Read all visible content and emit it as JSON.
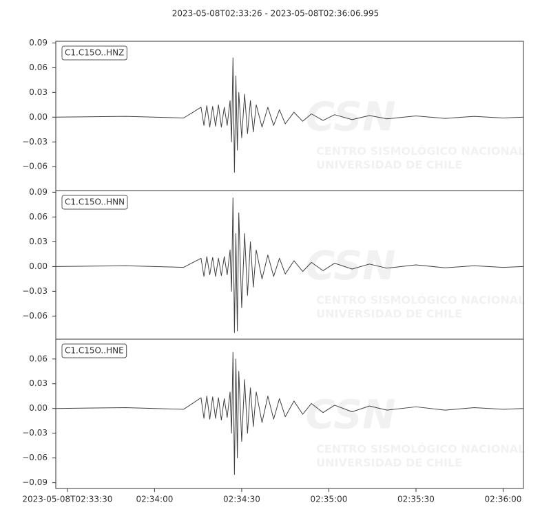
{
  "watermark": {
    "logo": "CSN",
    "lines": [
      "CENTRO SISMOLÓGICO NACIONAL",
      "UNIVERSIDAD DE CHILE"
    ]
  },
  "chart_data": [
    {
      "type": "line",
      "title": "2023-05-08T02:33:26  -  2023-05-08T02:36:06.995",
      "x": [
        "2023-05-08T02:33:26",
        "2023-05-08T02:33:50",
        "2023-05-08T02:34:10",
        "2023-05-08T02:34:16",
        "2023-05-08T02:34:17",
        "2023-05-08T02:34:18",
        "2023-05-08T02:34:19",
        "2023-05-08T02:34:20",
        "2023-05-08T02:34:21",
        "2023-05-08T02:34:22",
        "2023-05-08T02:34:23",
        "2023-05-08T02:34:24",
        "2023-05-08T02:34:25",
        "2023-05-08T02:34:26",
        "2023-05-08T02:34:26.5",
        "2023-05-08T02:34:27",
        "2023-05-08T02:34:27.5",
        "2023-05-08T02:34:28",
        "2023-05-08T02:34:28.5",
        "2023-05-08T02:34:29",
        "2023-05-08T02:34:30",
        "2023-05-08T02:34:31",
        "2023-05-08T02:34:32",
        "2023-05-08T02:34:33",
        "2023-05-08T02:34:34",
        "2023-05-08T02:34:35",
        "2023-05-08T02:34:37",
        "2023-05-08T02:34:39",
        "2023-05-08T02:34:41",
        "2023-05-08T02:34:43",
        "2023-05-08T02:34:45",
        "2023-05-08T02:34:48",
        "2023-05-08T02:34:51",
        "2023-05-08T02:34:54",
        "2023-05-08T02:34:58",
        "2023-05-08T02:35:02",
        "2023-05-08T02:35:08",
        "2023-05-08T02:35:14",
        "2023-05-08T02:35:20",
        "2023-05-08T02:35:30",
        "2023-05-08T02:35:40",
        "2023-05-08T02:35:50",
        "2023-05-08T02:36:00",
        "2023-05-08T02:36:06.995"
      ],
      "series": [
        {
          "name": "C1.C15O..HNZ",
          "color": "#404040",
          "values": [
            0,
            0.001,
            -0.001,
            0.012,
            -0.01,
            0.014,
            -0.012,
            0.013,
            -0.011,
            0.015,
            -0.012,
            0.012,
            -0.01,
            0.02,
            -0.03,
            0.072,
            -0.067,
            0.05,
            -0.04,
            0.03,
            -0.025,
            0.028,
            -0.02,
            0.02,
            -0.018,
            0.015,
            -0.012,
            0.012,
            -0.01,
            0.009,
            -0.008,
            0.006,
            -0.005,
            0.004,
            -0.004,
            0.003,
            -0.003,
            0.002,
            -0.002,
            0.0015,
            -0.0015,
            0.001,
            -0.001,
            0
          ]
        }
      ],
      "xlim": [
        "2023-05-08T02:33:26",
        "2023-05-08T02:36:06.995"
      ],
      "ylim": [
        -0.089,
        0.092
      ],
      "yticks": [
        0.09,
        0.06,
        0.03,
        {
          "value": 0,
          "label": "0.00"
        },
        {
          "value": -0.03,
          "label": "−0.03"
        },
        {
          "value": -0.06,
          "label": "−0.06"
        }
      ],
      "legend": "upper left"
    },
    {
      "type": "line",
      "x": [
        "2023-05-08T02:33:26",
        "2023-05-08T02:33:50",
        "2023-05-08T02:34:10",
        "2023-05-08T02:34:16",
        "2023-05-08T02:34:17",
        "2023-05-08T02:34:18",
        "2023-05-08T02:34:19",
        "2023-05-08T02:34:20",
        "2023-05-08T02:34:21",
        "2023-05-08T02:34:22",
        "2023-05-08T02:34:23",
        "2023-05-08T02:34:24",
        "2023-05-08T02:34:25",
        "2023-05-08T02:34:26",
        "2023-05-08T02:34:26.5",
        "2023-05-08T02:34:27",
        "2023-05-08T02:34:27.5",
        "2023-05-08T02:34:28",
        "2023-05-08T02:34:28.5",
        "2023-05-08T02:34:29",
        "2023-05-08T02:34:30",
        "2023-05-08T02:34:31",
        "2023-05-08T02:34:32",
        "2023-05-08T02:34:33",
        "2023-05-08T02:34:34",
        "2023-05-08T02:34:35",
        "2023-05-08T02:34:37",
        "2023-05-08T02:34:39",
        "2023-05-08T02:34:41",
        "2023-05-08T02:34:43",
        "2023-05-08T02:34:45",
        "2023-05-08T02:34:48",
        "2023-05-08T02:34:51",
        "2023-05-08T02:34:54",
        "2023-05-08T02:34:58",
        "2023-05-08T02:35:02",
        "2023-05-08T02:35:08",
        "2023-05-08T02:35:14",
        "2023-05-08T02:35:20",
        "2023-05-08T02:35:30",
        "2023-05-08T02:35:40",
        "2023-05-08T02:35:50",
        "2023-05-08T02:36:00",
        "2023-05-08T02:36:06.995"
      ],
      "series": [
        {
          "name": "C1.C15O..HNN",
          "color": "#404040",
          "values": [
            0,
            0.001,
            -0.001,
            0.01,
            -0.012,
            0.012,
            -0.01,
            0.011,
            -0.012,
            0.01,
            -0.011,
            0.012,
            -0.01,
            0.02,
            -0.03,
            0.083,
            -0.08,
            0.04,
            -0.078,
            0.065,
            -0.05,
            0.04,
            -0.035,
            0.03,
            -0.025,
            0.02,
            -0.015,
            0.014,
            -0.012,
            0.01,
            -0.009,
            0.007,
            -0.006,
            0.005,
            -0.005,
            0.004,
            -0.003,
            0.003,
            -0.002,
            0.002,
            -0.0015,
            0.001,
            -0.001,
            0
          ]
        }
      ],
      "xlim": [
        "2023-05-08T02:33:26",
        "2023-05-08T02:36:06.995"
      ],
      "ylim": [
        -0.088,
        0.092
      ],
      "yticks": [
        0.09,
        0.06,
        0.03,
        {
          "value": 0,
          "label": "0.00"
        },
        {
          "value": -0.03,
          "label": "−0.03"
        },
        {
          "value": -0.06,
          "label": "−0.06"
        }
      ],
      "legend": "upper left"
    },
    {
      "type": "line",
      "x": [
        "2023-05-08T02:33:26",
        "2023-05-08T02:33:50",
        "2023-05-08T02:34:10",
        "2023-05-08T02:34:16",
        "2023-05-08T02:34:17",
        "2023-05-08T02:34:18",
        "2023-05-08T02:34:19",
        "2023-05-08T02:34:20",
        "2023-05-08T02:34:21",
        "2023-05-08T02:34:22",
        "2023-05-08T02:34:23",
        "2023-05-08T02:34:24",
        "2023-05-08T02:34:25",
        "2023-05-08T02:34:26",
        "2023-05-08T02:34:26.5",
        "2023-05-08T02:34:27",
        "2023-05-08T02:34:27.5",
        "2023-05-08T02:34:28",
        "2023-05-08T02:34:28.5",
        "2023-05-08T02:34:29",
        "2023-05-08T02:34:30",
        "2023-05-08T02:34:31",
        "2023-05-08T02:34:32",
        "2023-05-08T02:34:33",
        "2023-05-08T02:34:34",
        "2023-05-08T02:34:35",
        "2023-05-08T02:34:37",
        "2023-05-08T02:34:39",
        "2023-05-08T02:34:41",
        "2023-05-08T02:34:43",
        "2023-05-08T02:34:45",
        "2023-05-08T02:34:48",
        "2023-05-08T02:34:51",
        "2023-05-08T02:34:54",
        "2023-05-08T02:34:58",
        "2023-05-08T02:35:02",
        "2023-05-08T02:35:08",
        "2023-05-08T02:35:14",
        "2023-05-08T02:35:20",
        "2023-05-08T02:35:30",
        "2023-05-08T02:35:40",
        "2023-05-08T02:35:50",
        "2023-05-08T02:36:00",
        "2023-05-08T02:36:06.995"
      ],
      "series": [
        {
          "name": "C1.C15O..HNE",
          "color": "#404040",
          "values": [
            0,
            0.001,
            -0.001,
            0.013,
            -0.012,
            0.015,
            -0.013,
            0.014,
            -0.012,
            0.013,
            -0.014,
            0.012,
            -0.011,
            0.02,
            -0.03,
            0.068,
            -0.08,
            0.06,
            -0.06,
            0.045,
            -0.04,
            0.035,
            -0.03,
            0.025,
            -0.022,
            0.02,
            -0.017,
            0.015,
            -0.013,
            0.012,
            -0.01,
            0.009,
            -0.007,
            0.006,
            -0.005,
            0.004,
            -0.004,
            0.003,
            -0.002,
            0.002,
            -0.002,
            0.001,
            -0.001,
            0
          ]
        }
      ],
      "xlim": [
        "2023-05-08T02:33:26",
        "2023-05-08T02:36:06.995"
      ],
      "ylim": [
        -0.097,
        0.084
      ],
      "yticks": [
        0.06,
        0.03,
        {
          "value": 0,
          "label": "0.00"
        },
        {
          "value": -0.03,
          "label": "−0.03"
        },
        {
          "value": -0.06,
          "label": "−0.06"
        },
        {
          "value": -0.09,
          "label": "−0.09"
        }
      ],
      "xticks": [
        "2023-05-08T02:33:30",
        {
          "value": "2023-05-08T02:34:00",
          "label": "02:34:00"
        },
        {
          "value": "2023-05-08T02:34:30",
          "label": "02:34:30"
        },
        {
          "value": "2023-05-08T02:35:00",
          "label": "02:35:00"
        },
        {
          "value": "2023-05-08T02:35:30",
          "label": "02:35:30"
        },
        {
          "value": "2023-05-08T02:36:00",
          "label": "02:36:00"
        }
      ],
      "legend": "upper left"
    }
  ]
}
